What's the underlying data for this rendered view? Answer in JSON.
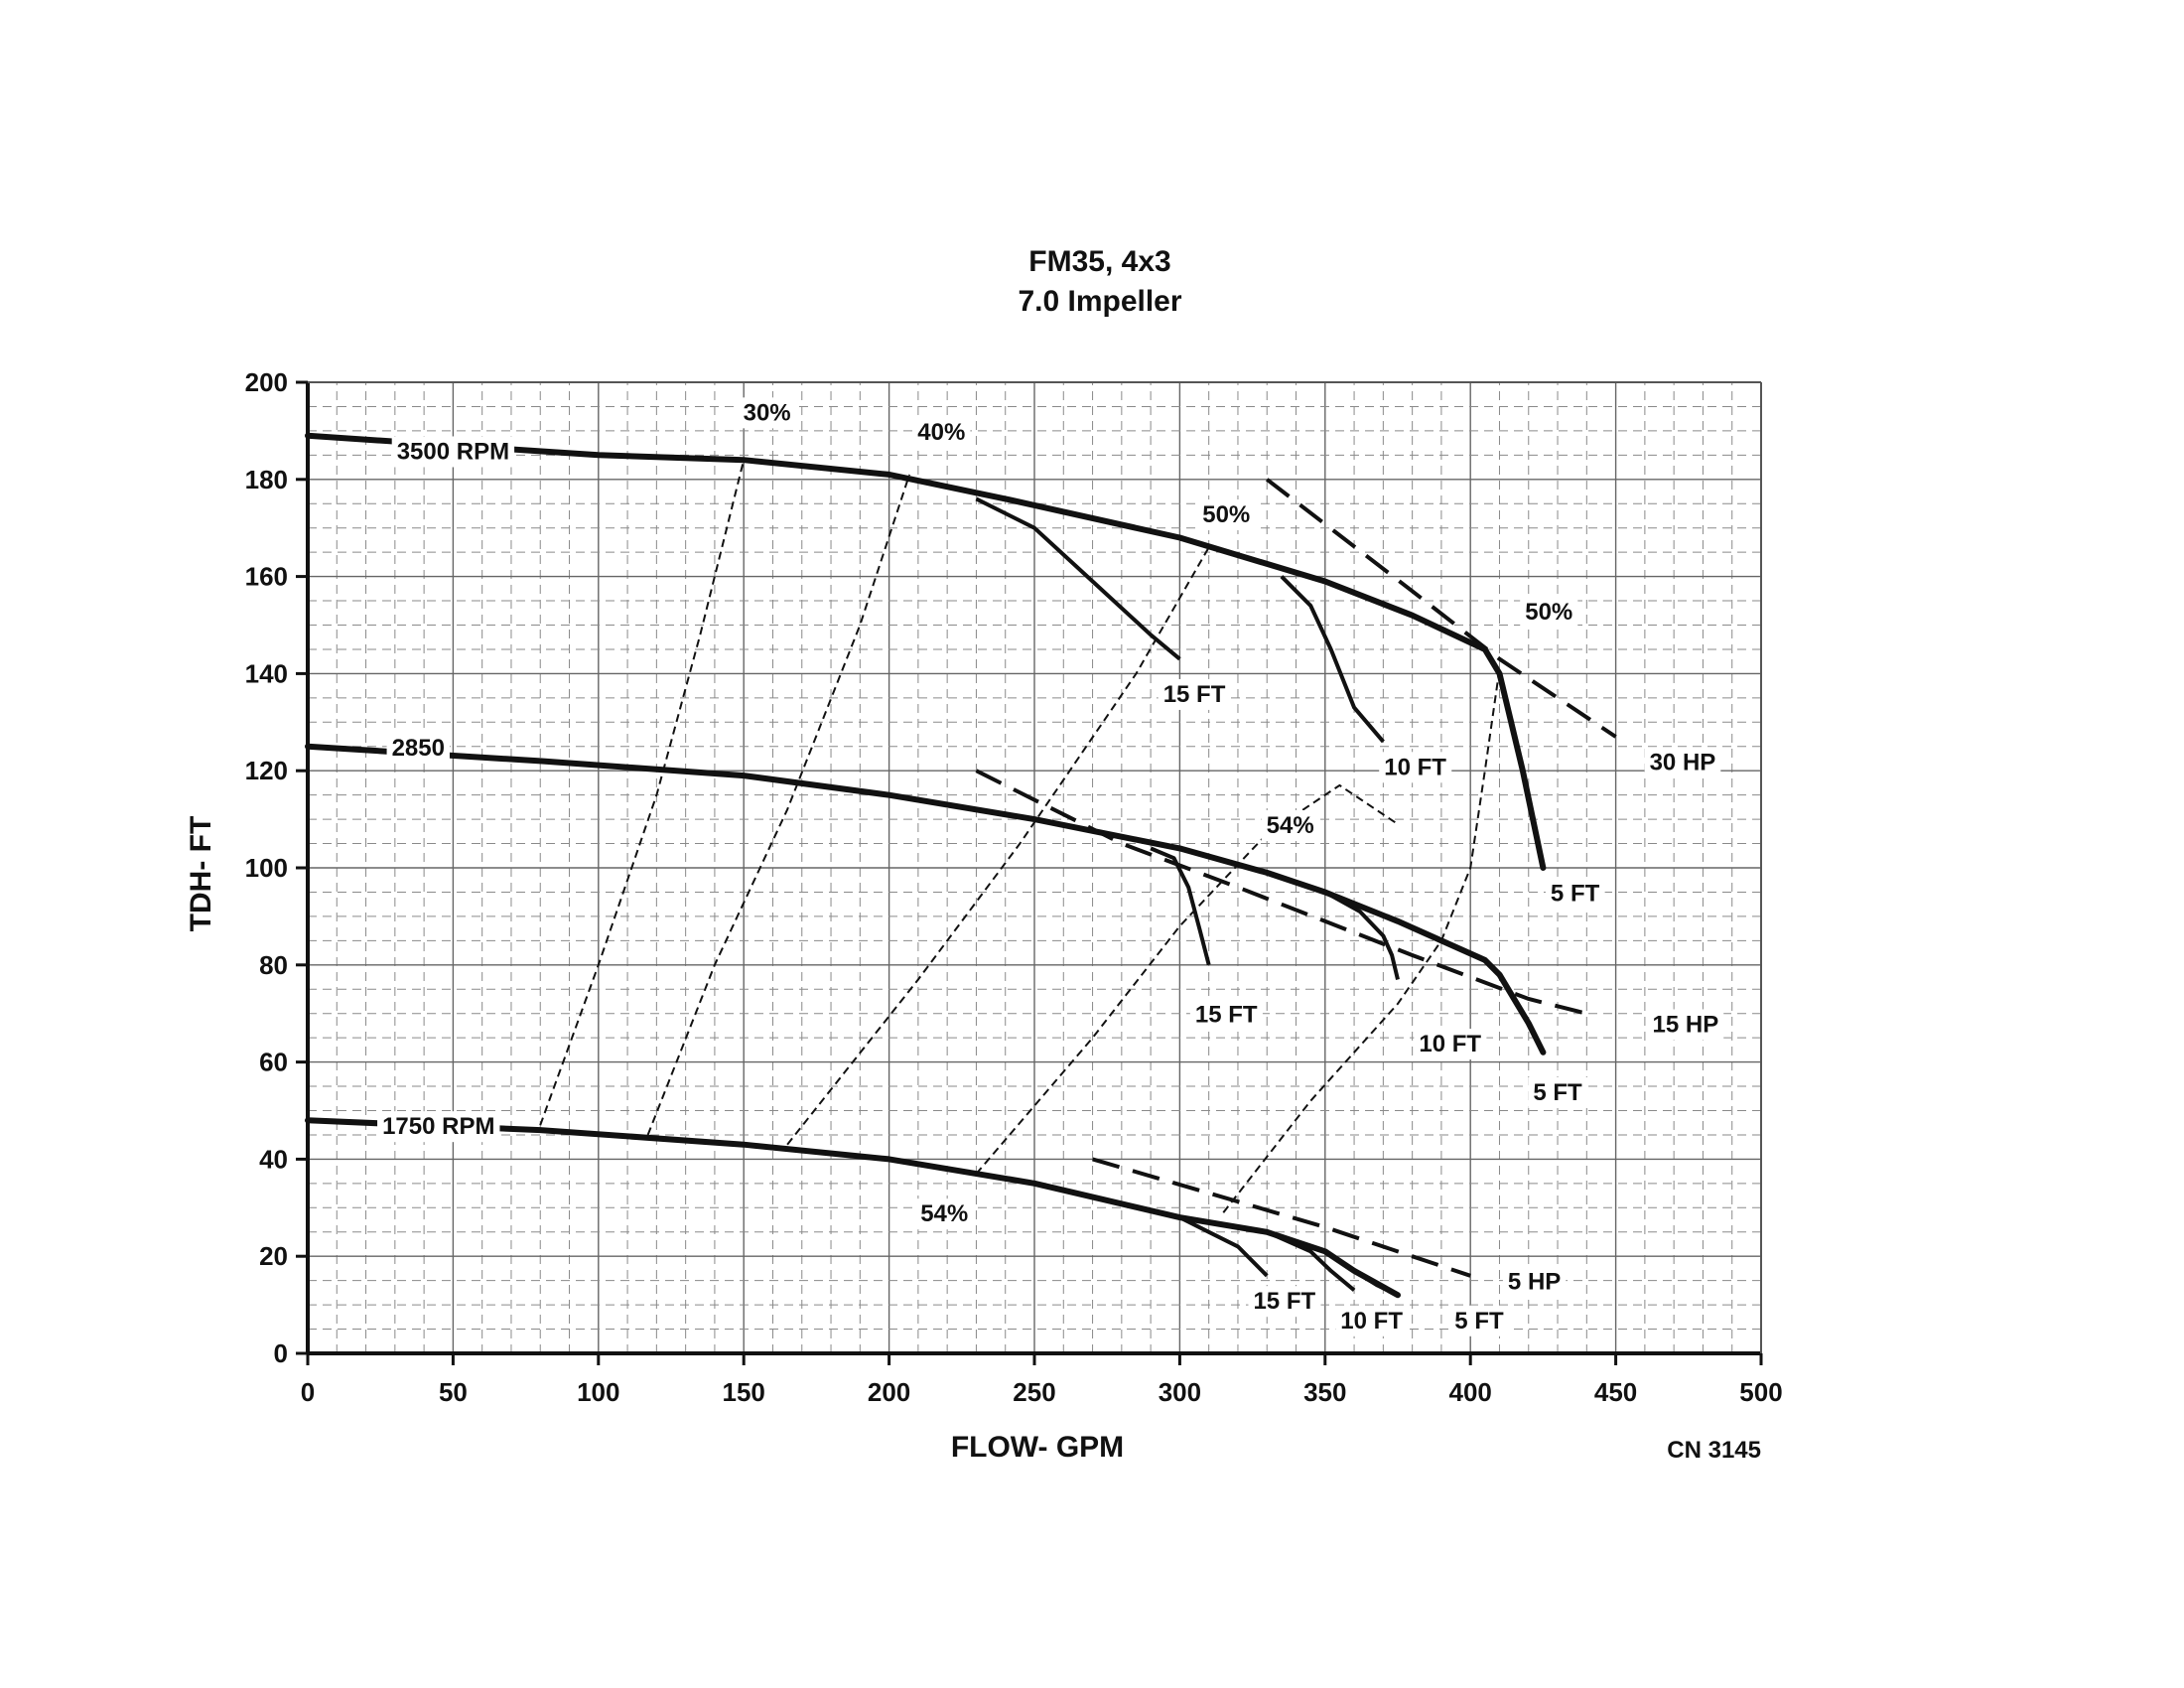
{
  "chart_data": {
    "type": "line",
    "title": "FM35, 4x3",
    "subtitle": "7.0 Impeller",
    "xlabel": "FLOW- GPM",
    "ylabel": "TDH- FT",
    "code": "CN 3145",
    "xlim": [
      0,
      500
    ],
    "ylim": [
      0,
      200
    ],
    "xticks": [
      0,
      50,
      100,
      150,
      200,
      250,
      300,
      350,
      400,
      450,
      500
    ],
    "yticks": [
      0,
      20,
      40,
      60,
      80,
      100,
      120,
      140,
      160,
      180,
      200
    ],
    "grid": true,
    "colors": {
      "ink": "#111111",
      "background": "#ffffff"
    },
    "speed_curves": [
      {
        "label": "3500 RPM",
        "points": [
          [
            0,
            189
          ],
          [
            100,
            185
          ],
          [
            150,
            184
          ],
          [
            200,
            181
          ],
          [
            240,
            176
          ],
          [
            300,
            168
          ],
          [
            350,
            159
          ],
          [
            380,
            152
          ],
          [
            405,
            145
          ],
          [
            410,
            140
          ],
          [
            418,
            120
          ],
          [
            425,
            100
          ]
        ]
      },
      {
        "label": "2850",
        "points": [
          [
            0,
            125
          ],
          [
            80,
            122
          ],
          [
            150,
            119
          ],
          [
            200,
            115
          ],
          [
            250,
            110
          ],
          [
            300,
            104
          ],
          [
            330,
            99
          ],
          [
            350,
            95
          ],
          [
            375,
            89
          ],
          [
            405,
            81
          ],
          [
            410,
            78
          ],
          [
            420,
            68
          ],
          [
            425,
            62
          ]
        ]
      },
      {
        "label": "1750 RPM",
        "points": [
          [
            0,
            48
          ],
          [
            80,
            46
          ],
          [
            150,
            43
          ],
          [
            200,
            40
          ],
          [
            250,
            35
          ],
          [
            300,
            28
          ],
          [
            330,
            25
          ],
          [
            350,
            21
          ],
          [
            360,
            17
          ],
          [
            375,
            12
          ]
        ]
      }
    ],
    "npsh_curves": [
      {
        "label": "15 FT",
        "points": [
          [
            230,
            176
          ],
          [
            250,
            170
          ],
          [
            270,
            159
          ],
          [
            290,
            148
          ],
          [
            300,
            143
          ]
        ]
      },
      {
        "label": "10 FT",
        "points": [
          [
            335,
            160
          ],
          [
            345,
            154
          ],
          [
            352,
            145
          ],
          [
            360,
            133
          ],
          [
            370,
            126
          ]
        ]
      },
      {
        "label": "15 FT",
        "points": [
          [
            290,
            104
          ],
          [
            298,
            102
          ],
          [
            303,
            96
          ],
          [
            307,
            87
          ],
          [
            310,
            80
          ]
        ]
      },
      {
        "label": "10 FT",
        "points": [
          [
            350,
            95
          ],
          [
            362,
            91
          ],
          [
            370,
            86
          ],
          [
            373,
            82
          ],
          [
            375,
            77
          ]
        ]
      },
      {
        "label": "15 FT",
        "points": [
          [
            300,
            28
          ],
          [
            310,
            25
          ],
          [
            320,
            22
          ],
          [
            330,
            16
          ]
        ]
      },
      {
        "label": "10 FT",
        "points": [
          [
            330,
            25
          ],
          [
            345,
            21
          ],
          [
            352,
            17
          ],
          [
            360,
            13
          ]
        ]
      },
      {
        "label": "5 FT",
        "points": [
          [
            350,
            21
          ],
          [
            360,
            17
          ],
          [
            368,
            14
          ],
          [
            375,
            12
          ]
        ]
      }
    ],
    "efficiency_curves": [
      {
        "label": "30%",
        "points": [
          [
            80,
            47
          ],
          [
            100,
            80
          ],
          [
            120,
            115
          ],
          [
            135,
            148
          ],
          [
            150,
            184
          ]
        ]
      },
      {
        "label": "40%",
        "points": [
          [
            117,
            45
          ],
          [
            140,
            80
          ],
          [
            165,
            112
          ],
          [
            190,
            150
          ],
          [
            207,
            181
          ]
        ]
      },
      {
        "label": "50%",
        "points": [
          [
            165,
            43
          ],
          [
            210,
            77
          ],
          [
            245,
            105
          ],
          [
            285,
            140
          ],
          [
            310,
            166
          ]
        ]
      },
      {
        "label": "54%",
        "points": [
          [
            230,
            37
          ],
          [
            270,
            65
          ],
          [
            300,
            88
          ],
          [
            330,
            107
          ],
          [
            355,
            117
          ],
          [
            375,
            109
          ]
        ]
      },
      {
        "label": "50%",
        "points": [
          [
            315,
            29
          ],
          [
            345,
            52
          ],
          [
            375,
            72
          ],
          [
            390,
            85
          ],
          [
            400,
            100
          ],
          [
            405,
            120
          ],
          [
            410,
            141
          ]
        ]
      }
    ],
    "horsepower_curves": [
      {
        "label": "30 HP",
        "points": [
          [
            330,
            180
          ],
          [
            380,
            157
          ],
          [
            410,
            143
          ],
          [
            450,
            127
          ]
        ]
      },
      {
        "label": "15 HP",
        "points": [
          [
            230,
            120
          ],
          [
            280,
            105
          ],
          [
            320,
            96
          ],
          [
            380,
            82
          ],
          [
            420,
            73
          ],
          [
            440,
            70
          ]
        ]
      },
      {
        "label": "5 HP",
        "points": [
          [
            270,
            40
          ],
          [
            310,
            33
          ],
          [
            350,
            26
          ],
          [
            400,
            16
          ]
        ]
      }
    ],
    "annotations": [
      {
        "text": "3500 RPM",
        "x": 50,
        "y": 186
      },
      {
        "text": "2850",
        "x": 38,
        "y": 125
      },
      {
        "text": "1750 RPM",
        "x": 45,
        "y": 47
      },
      {
        "text": "30%",
        "x": 158,
        "y": 194
      },
      {
        "text": "40%",
        "x": 218,
        "y": 190
      },
      {
        "text": "50%",
        "x": 316,
        "y": 173
      },
      {
        "text": "50%",
        "x": 427,
        "y": 153
      },
      {
        "text": "54%",
        "x": 338,
        "y": 109
      },
      {
        "text": "54%",
        "x": 219,
        "y": 29
      },
      {
        "text": "15 FT",
        "x": 305,
        "y": 136
      },
      {
        "text": "10 FT",
        "x": 381,
        "y": 121
      },
      {
        "text": "5 FT",
        "x": 436,
        "y": 95
      },
      {
        "text": "30 HP",
        "x": 473,
        "y": 122
      },
      {
        "text": "15 FT",
        "x": 316,
        "y": 70
      },
      {
        "text": "10 FT",
        "x": 393,
        "y": 64
      },
      {
        "text": "5 FT",
        "x": 430,
        "y": 54
      },
      {
        "text": "15 HP",
        "x": 474,
        "y": 68
      },
      {
        "text": "15 FT",
        "x": 336,
        "y": 11
      },
      {
        "text": "10 FT",
        "x": 366,
        "y": 7
      },
      {
        "text": "5 FT",
        "x": 403,
        "y": 7
      },
      {
        "text": "5 HP",
        "x": 422,
        "y": 15
      }
    ]
  }
}
